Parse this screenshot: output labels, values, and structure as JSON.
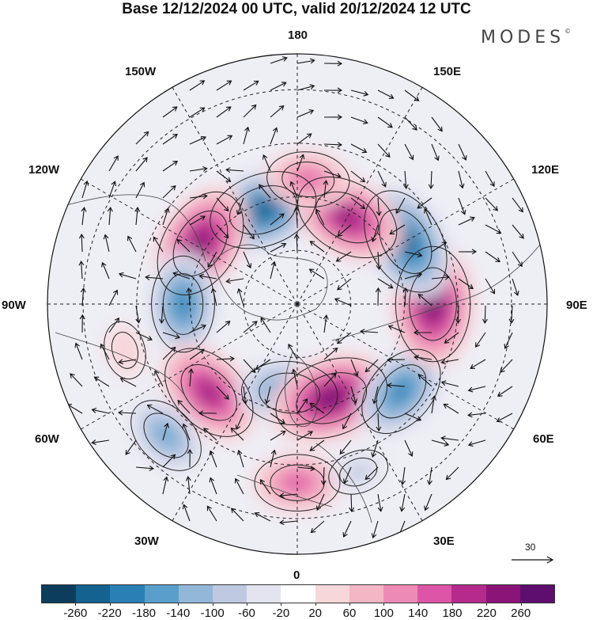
{
  "title": "Base 12/12/2024 00 UTC, valid 20/12/2024 12 UTC",
  "brand": {
    "name": "MODES",
    "mark": "©"
  },
  "map": {
    "projection": "north-polar-stereographic",
    "graticule": true,
    "wind_arrows": true,
    "lon_labels": [
      "180",
      "150E",
      "120E",
      "90E",
      "60E",
      "30E",
      "0",
      "30W",
      "60W",
      "90W",
      "120W",
      "150W"
    ]
  },
  "scale_arrow": {
    "value": "30",
    "icon": "arrow-right-icon"
  },
  "colorbar": {
    "colors": [
      "#0d3d5c",
      "#13628f",
      "#2a80b5",
      "#5a9fcb",
      "#93b7d9",
      "#bfc9e2",
      "#e4e4f0",
      "#ffffff",
      "#f8d7da",
      "#f4b5c4",
      "#ee8bb5",
      "#dd55a6",
      "#b52a8c",
      "#8a1478",
      "#5e0e6e"
    ],
    "ticks": [
      "-260",
      "-220",
      "-180",
      "-140",
      "-100",
      "-60",
      "-20",
      "20",
      "60",
      "100",
      "140",
      "180",
      "220",
      "260"
    ]
  },
  "anomalies": [
    {
      "name": "low-pacific-aleutian",
      "lon": -160,
      "lat": 62,
      "value": -250
    },
    {
      "name": "high-north-america-west",
      "lon": -122,
      "lat": 58,
      "value": 260
    },
    {
      "name": "low-canada-east",
      "lon": -90,
      "lat": 58,
      "value": -200
    },
    {
      "name": "high-atlantic-central",
      "lon": -45,
      "lat": 55,
      "value": 230
    },
    {
      "name": "low-atlantic-south",
      "lon": -45,
      "lat": 38,
      "value": -150
    },
    {
      "name": "high-atlantic-west",
      "lon": -75,
      "lat": 40,
      "value": 60
    },
    {
      "name": "low-scandinavia",
      "lon": -5,
      "lat": 65,
      "value": -200
    },
    {
      "name": "high-russia-west",
      "lon": 20,
      "lat": 62,
      "value": 270
    },
    {
      "name": "low-russia-central",
      "lon": 50,
      "lat": 52,
      "value": -200
    },
    {
      "name": "high-siberia",
      "lon": 90,
      "lat": 52,
      "value": 270
    },
    {
      "name": "low-east-asia",
      "lon": 120,
      "lat": 55,
      "value": -250
    },
    {
      "name": "high-pacific-north",
      "lon": 150,
      "lat": 62,
      "value": 240
    },
    {
      "name": "high-bering",
      "lon": 175,
      "lat": 55,
      "value": 150
    },
    {
      "name": "high-europe-south",
      "lon": 0,
      "lat": 40,
      "value": 160
    },
    {
      "name": "low-mediterranean",
      "lon": 20,
      "lat": 40,
      "value": -70
    }
  ]
}
